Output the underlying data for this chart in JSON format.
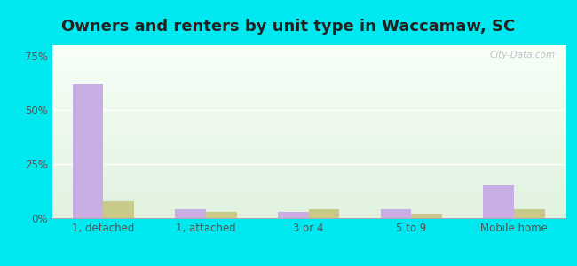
{
  "title": "Owners and renters by unit type in Waccamaw, SC",
  "categories": [
    "1, detached",
    "1, attached",
    "3 or 4",
    "5 to 9",
    "Mobile home"
  ],
  "owner_values": [
    62,
    4,
    3,
    4,
    15
  ],
  "renter_values": [
    8,
    3,
    4,
    2,
    4
  ],
  "owner_color": "#c9aee5",
  "renter_color": "#c8ca8a",
  "yticks": [
    0,
    25,
    50,
    75
  ],
  "ytick_labels": [
    "0%",
    "25%",
    "50%",
    "75%"
  ],
  "ylim": [
    0,
    80
  ],
  "background_outer": "#00e8f0",
  "watermark": "City-Data.com",
  "bar_width": 0.3,
  "title_fontsize": 13,
  "legend_fontsize": 9.5,
  "tick_fontsize": 8.5
}
